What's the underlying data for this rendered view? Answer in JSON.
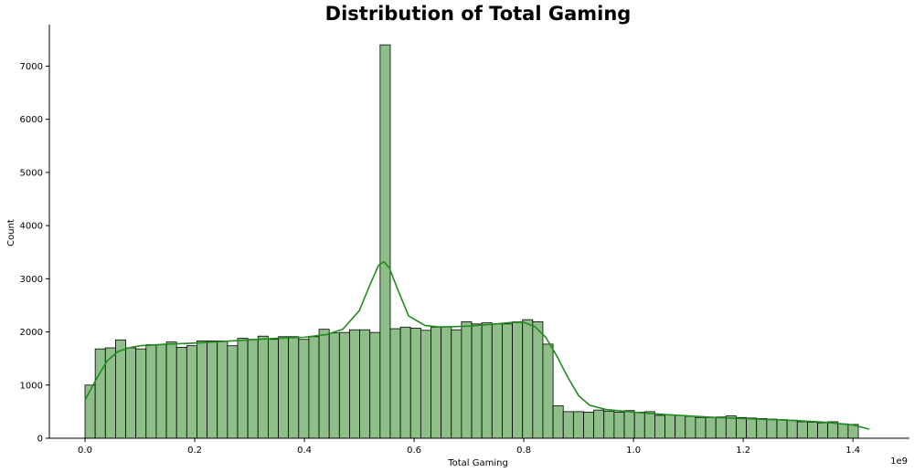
{
  "chart_data": {
    "type": "bar",
    "title": "Distribution of Total Gaming",
    "xlabel": "Total Gaming",
    "ylabel": "Count",
    "x_offset_label": "1e9",
    "xlim": [
      -0.065,
      1.503
    ],
    "ylim": [
      0,
      7780
    ],
    "x_ticks": [
      {
        "value": 0.0,
        "label": "0.0"
      },
      {
        "value": 0.2,
        "label": "0.2"
      },
      {
        "value": 0.4,
        "label": "0.4"
      },
      {
        "value": 0.6,
        "label": "0.6"
      },
      {
        "value": 0.8,
        "label": "0.8"
      },
      {
        "value": 1.0,
        "label": "1.0"
      },
      {
        "value": 1.2,
        "label": "1.2"
      },
      {
        "value": 1.4,
        "label": "1.4"
      }
    ],
    "y_ticks": [
      {
        "value": 0,
        "label": "0"
      },
      {
        "value": 1000,
        "label": "1000"
      },
      {
        "value": 2000,
        "label": "2000"
      },
      {
        "value": 3000,
        "label": "3000"
      },
      {
        "value": 4000,
        "label": "4000"
      },
      {
        "value": 5000,
        "label": "5000"
      },
      {
        "value": 6000,
        "label": "6000"
      },
      {
        "value": 7000,
        "label": "7000"
      }
    ],
    "bin_start": 0.0,
    "bin_width": 0.01855,
    "counts": [
      1000,
      1680,
      1700,
      1850,
      1700,
      1680,
      1760,
      1760,
      1810,
      1710,
      1740,
      1830,
      1830,
      1830,
      1740,
      1880,
      1860,
      1920,
      1860,
      1910,
      1910,
      1860,
      1910,
      2050,
      1980,
      1990,
      2040,
      2040,
      1990,
      7400,
      2060,
      2090,
      2070,
      2030,
      2090,
      2100,
      2040,
      2190,
      2150,
      2170,
      2150,
      2150,
      2190,
      2230,
      2190,
      1770,
      610,
      500,
      500,
      490,
      530,
      510,
      490,
      520,
      490,
      500,
      430,
      440,
      430,
      410,
      390,
      390,
      400,
      420,
      390,
      380,
      370,
      360,
      350,
      340,
      310,
      300,
      290,
      310,
      270,
      260
    ],
    "kde": {
      "x": [
        0.0,
        0.02,
        0.04,
        0.06,
        0.08,
        0.1,
        0.15,
        0.2,
        0.25,
        0.3,
        0.35,
        0.4,
        0.44,
        0.47,
        0.5,
        0.52,
        0.535,
        0.545,
        0.555,
        0.57,
        0.59,
        0.62,
        0.65,
        0.7,
        0.75,
        0.78,
        0.8,
        0.82,
        0.84,
        0.86,
        0.88,
        0.9,
        0.92,
        0.95,
        1.0,
        1.05,
        1.1,
        1.15,
        1.2,
        1.25,
        1.3,
        1.35,
        1.4,
        1.43
      ],
      "y": [
        720,
        1100,
        1450,
        1630,
        1700,
        1740,
        1770,
        1790,
        1820,
        1850,
        1880,
        1900,
        1950,
        2050,
        2400,
        2900,
        3250,
        3320,
        3200,
        2800,
        2300,
        2120,
        2090,
        2110,
        2150,
        2180,
        2180,
        2100,
        1900,
        1550,
        1150,
        800,
        620,
        540,
        490,
        450,
        420,
        390,
        370,
        350,
        330,
        300,
        250,
        170
      ]
    },
    "bar_color": "#8fbf89",
    "bar_edge_color": "#000000",
    "kde_color": "#228b22",
    "grid": false,
    "legend": "none"
  }
}
